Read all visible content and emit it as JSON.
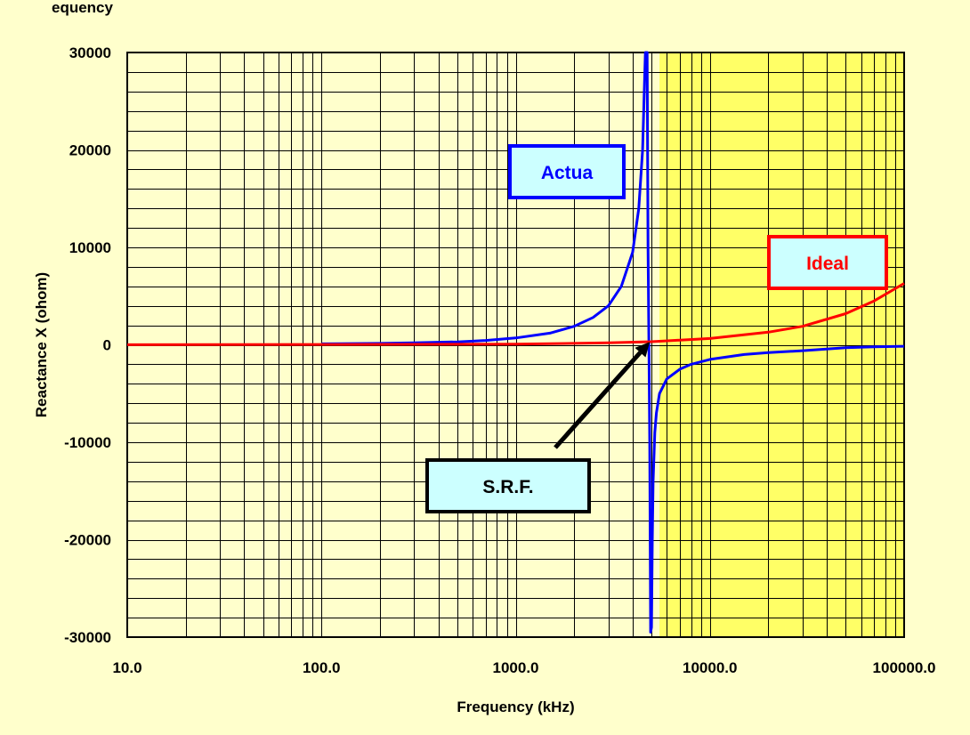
{
  "page_title_fragment": "equency",
  "chart_data": {
    "type": "line",
    "xscale": "log",
    "xlim": [
      10,
      100000
    ],
    "ylim": [
      -30000,
      30000
    ],
    "xlabel": "Frequency (kHz)",
    "ylabel": "Reactance X (ohom)",
    "grid": true,
    "xticks": [
      10,
      100,
      1000,
      10000,
      100000
    ],
    "xtick_labels": [
      "10.0",
      "100.0",
      "1000.0",
      "10000.0",
      "100000.0"
    ],
    "yticks": [
      30000,
      20000,
      10000,
      0,
      -10000,
      -20000,
      -30000
    ],
    "ytick_labels": [
      "30000",
      "20000",
      "10000",
      "0",
      "-10000",
      "-20000",
      "-30000"
    ],
    "highlight_region": {
      "x_from": 5500,
      "x_to": 100000,
      "color": "#ffff66"
    },
    "series": [
      {
        "name": "Actua",
        "color": "#0000ff",
        "x": [
          100,
          200,
          300,
          500,
          700,
          1000,
          1500,
          2000,
          2500,
          3000,
          3500,
          4000,
          4300,
          4500,
          4650,
          4750,
          4800,
          4850,
          4900,
          4950,
          5000,
          5050,
          5100,
          5200,
          5300,
          5500,
          6000,
          7000,
          8000,
          10000,
          15000,
          20000,
          30000,
          50000,
          70000,
          100000
        ],
        "y": [
          100,
          150,
          200,
          300,
          450,
          700,
          1200,
          1900,
          2800,
          4000,
          6000,
          9500,
          14000,
          20000,
          30000,
          30000,
          10000,
          0,
          -10000,
          -29500,
          -29000,
          -20000,
          -14000,
          -9000,
          -7000,
          -5000,
          -3500,
          -2500,
          -2000,
          -1500,
          -1000,
          -800,
          -600,
          -300,
          -200,
          -150
        ]
      },
      {
        "name": "Ideal",
        "color": "#ff0000",
        "x": [
          10,
          100,
          1000,
          3000,
          5000,
          10000,
          20000,
          30000,
          50000,
          70000,
          100000
        ],
        "y": [
          5,
          40,
          60,
          200,
          320,
          650,
          1300,
          1900,
          3200,
          4500,
          6300
        ]
      }
    ],
    "annotations": [
      {
        "text": "Actua",
        "color": "#0000ff"
      },
      {
        "text": "Ideal",
        "color": "#ff0000"
      },
      {
        "text": "S.R.F.",
        "color": "#000000",
        "arrow_to": {
          "x": 4900,
          "y": 300
        }
      }
    ],
    "annotation_box_fill": "#ccffff"
  }
}
